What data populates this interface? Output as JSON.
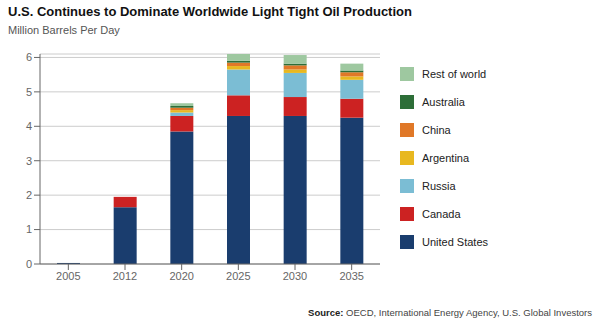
{
  "chart_data": {
    "type": "bar",
    "stacked": true,
    "title": "U.S. Continues to Dominate Worldwide Light Tight Oil Production",
    "subtitle": "Million Barrels Per Day",
    "annotations": [
      "Source:",
      "OECD, International Energy Agency, U.S. Global Investors"
    ],
    "categories": [
      "2005",
      "2012",
      "2020",
      "2025",
      "2030",
      "2035"
    ],
    "series": [
      {
        "name": "United States",
        "color": "#1a3d6e",
        "values": [
          0.03,
          1.65,
          3.85,
          4.3,
          4.3,
          4.25
        ]
      },
      {
        "name": "Canada",
        "color": "#cc2222",
        "values": [
          0.0,
          0.3,
          0.45,
          0.6,
          0.55,
          0.55
        ]
      },
      {
        "name": "Russia",
        "color": "#7bbdd4",
        "values": [
          0.0,
          0.0,
          0.1,
          0.75,
          0.7,
          0.55
        ]
      },
      {
        "name": "Argentina",
        "color": "#e8b820",
        "values": [
          0.0,
          0.0,
          0.07,
          0.1,
          0.1,
          0.1
        ]
      },
      {
        "name": "China",
        "color": "#e07828",
        "values": [
          0.0,
          0.0,
          0.07,
          0.1,
          0.12,
          0.12
        ]
      },
      {
        "name": "Australia",
        "color": "#2d6e38",
        "values": [
          0.0,
          0.0,
          0.05,
          0.05,
          0.05,
          0.05
        ]
      },
      {
        "name": "Rest of world",
        "color": "#9ec8a0",
        "values": [
          0.0,
          0.0,
          0.08,
          0.2,
          0.25,
          0.2
        ]
      }
    ],
    "ylim": [
      0,
      6.1
    ],
    "yticks": [
      0,
      1,
      2,
      3,
      4,
      5,
      6
    ],
    "grid": true,
    "legend": "right"
  }
}
